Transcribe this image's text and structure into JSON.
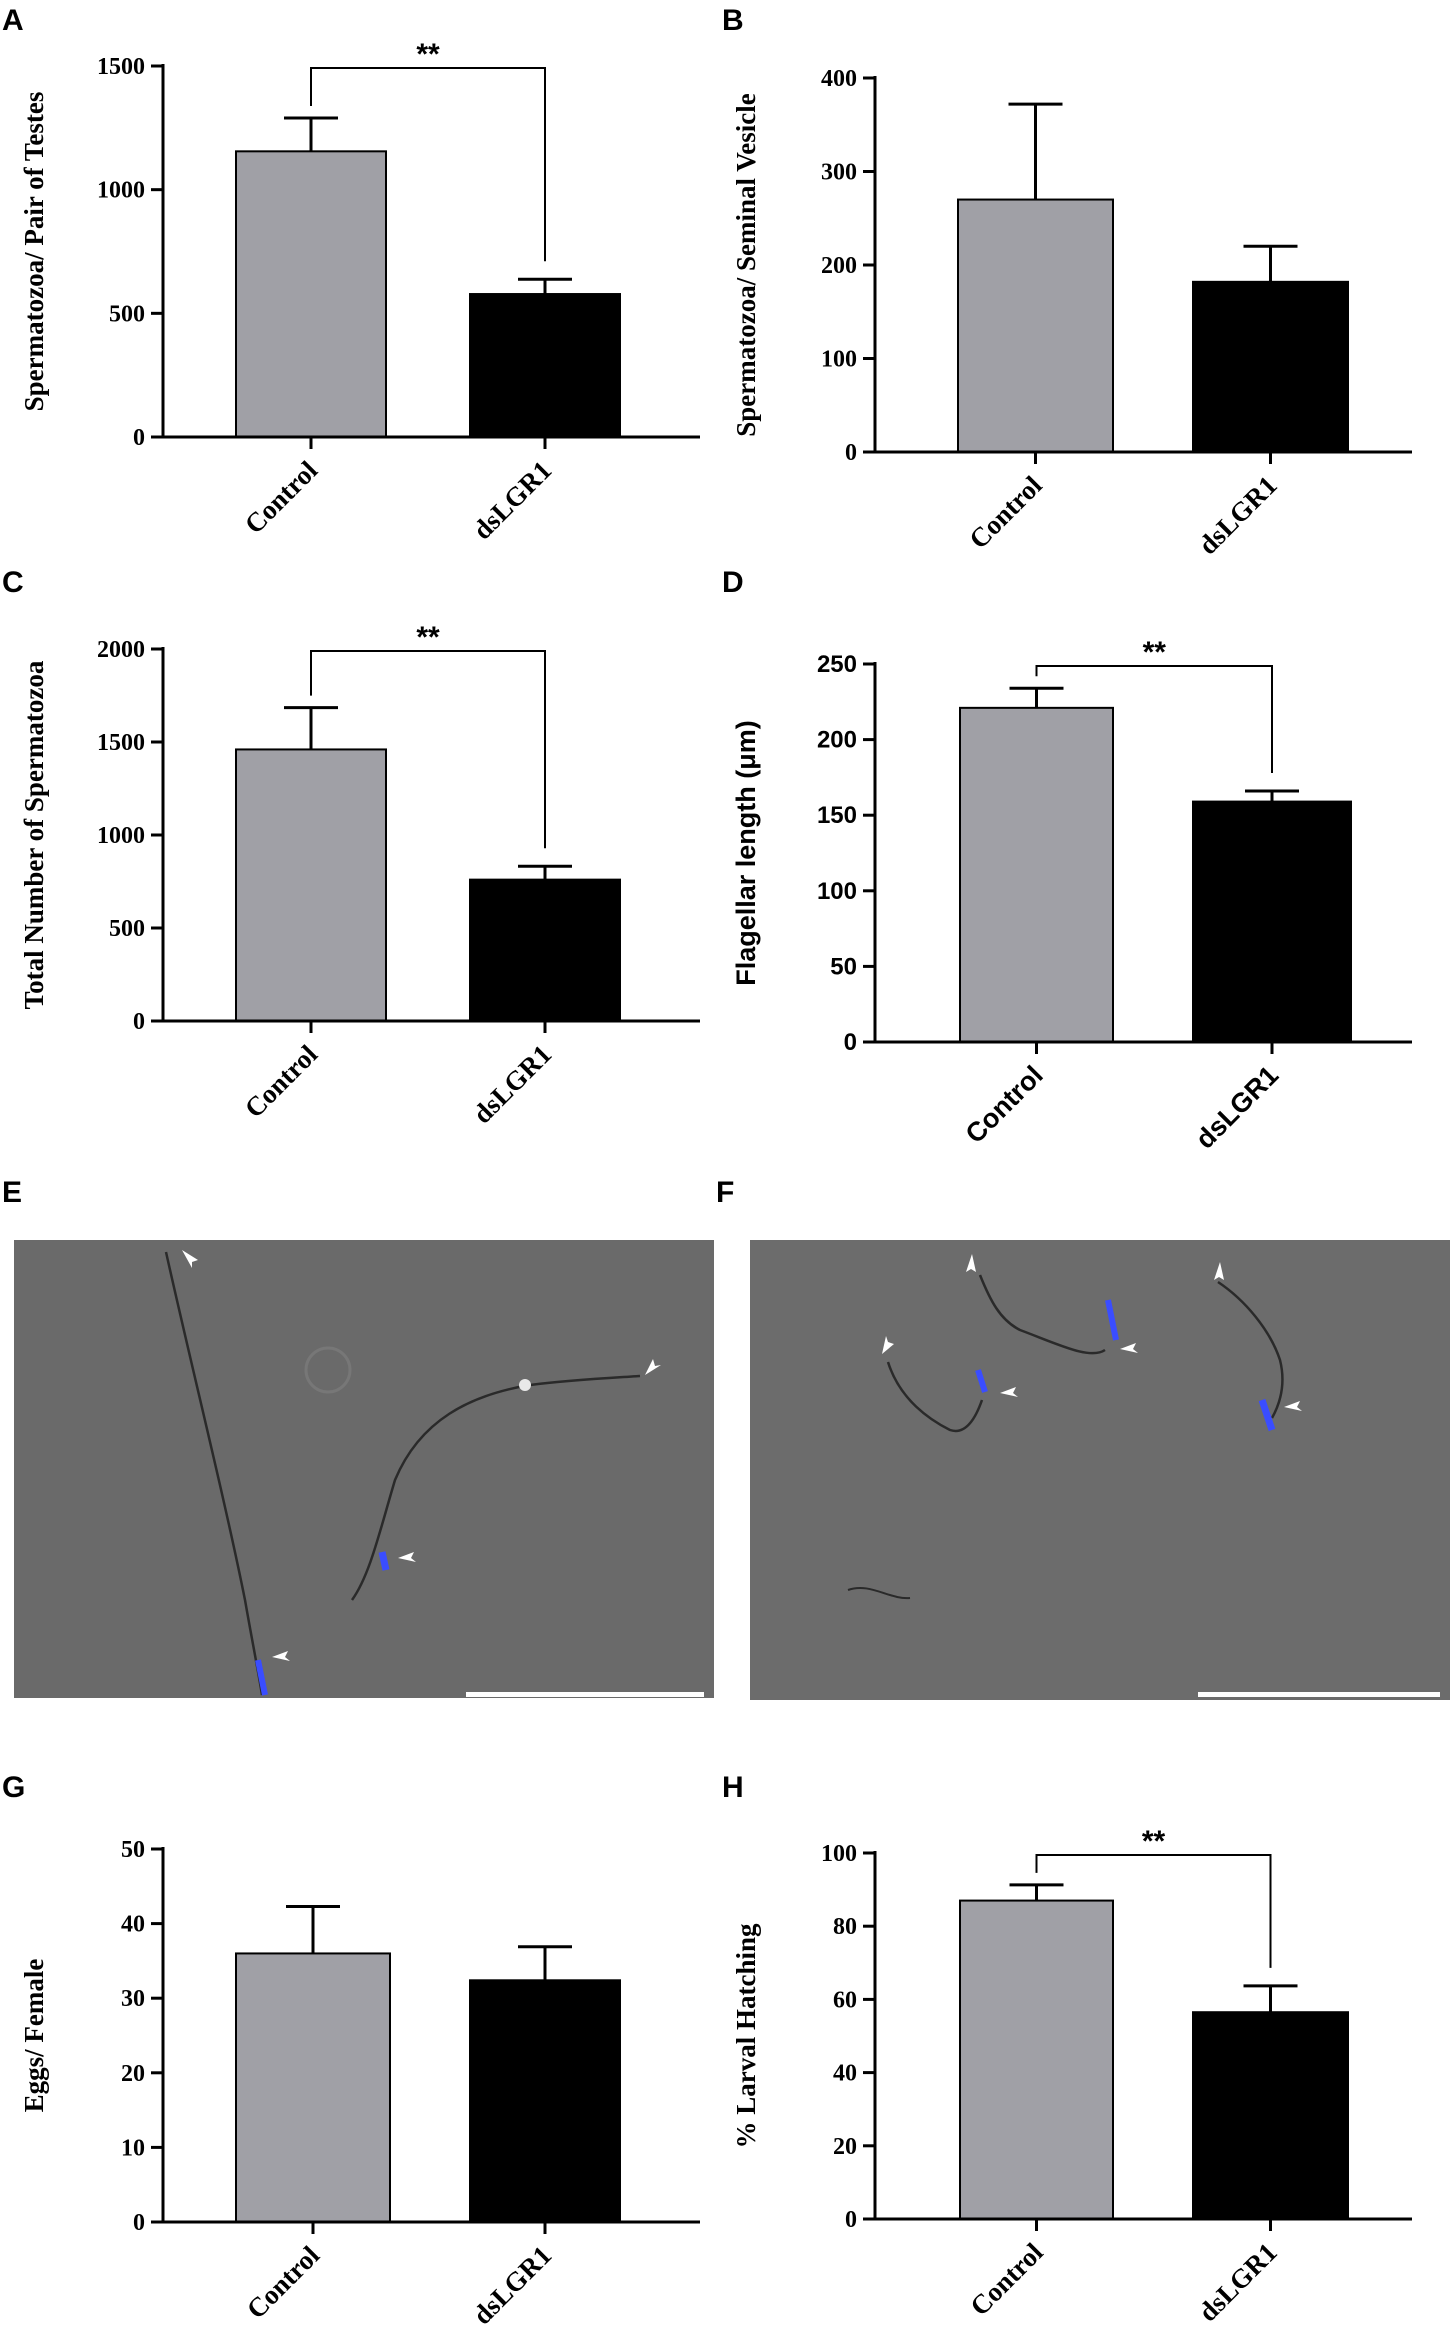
{
  "colors": {
    "control": "#a0a0a6",
    "dslgr1": "#000000",
    "micro_bg": "#6a6a6a",
    "scale_bar": "#ffffff",
    "dapi": "#3a4dff"
  },
  "panels": {
    "A": {
      "letter": "A",
      "chart_data": {
        "type": "bar",
        "categories": [
          "Control",
          "dsLGR1"
        ],
        "values": [
          1155,
          578
        ],
        "errors": [
          135,
          60
        ],
        "ylabel": "Spermatozoa/ Pair of Testes",
        "ylim": [
          0,
          1500
        ],
        "yticks": [
          0,
          500,
          1000,
          1500
        ],
        "significance": "**",
        "font": "serif"
      }
    },
    "B": {
      "letter": "B",
      "chart_data": {
        "type": "bar",
        "categories": [
          "Control",
          "dsLGR1"
        ],
        "values": [
          270,
          182
        ],
        "errors": [
          102,
          38
        ],
        "ylabel": "Spermatozoa/ Seminal Vesicle",
        "ylim": [
          0,
          400
        ],
        "yticks": [
          0,
          100,
          200,
          300,
          400
        ],
        "significance": "",
        "font": "serif"
      }
    },
    "C": {
      "letter": "C",
      "chart_data": {
        "type": "bar",
        "categories": [
          "Control",
          "dsLGR1"
        ],
        "values": [
          1460,
          760
        ],
        "errors": [
          225,
          72
        ],
        "ylabel": "Total Number of Spermatozoa",
        "ylim": [
          0,
          2000
        ],
        "yticks": [
          0,
          500,
          1000,
          1500,
          2000
        ],
        "significance": "**",
        "font": "serif"
      }
    },
    "D": {
      "letter": "D",
      "chart_data": {
        "type": "bar",
        "categories": [
          "Control",
          "dsLGR1"
        ],
        "values": [
          221,
          159
        ],
        "errors": [
          13,
          7
        ],
        "ylabel": "Flagellar length (μm)",
        "ylim": [
          0,
          250
        ],
        "yticks": [
          0,
          50,
          100,
          150,
          200,
          250
        ],
        "significance": "**",
        "font": "sans"
      }
    },
    "E": {
      "letter": "E"
    },
    "F": {
      "letter": "F"
    },
    "G": {
      "letter": "G",
      "chart_data": {
        "type": "bar",
        "categories": [
          "Control",
          "dsLGR1"
        ],
        "values": [
          36,
          32.4
        ],
        "errors": [
          6.3,
          4.5
        ],
        "ylabel": "Eggs/ Female",
        "ylim": [
          0,
          50
        ],
        "yticks": [
          0,
          10,
          20,
          30,
          40,
          50
        ],
        "significance": "",
        "font": "serif"
      }
    },
    "H": {
      "letter": "H",
      "chart_data": {
        "type": "bar",
        "categories": [
          "Control",
          "dsLGR1"
        ],
        "values": [
          87,
          56.5
        ],
        "errors": [
          4.3,
          7.2
        ],
        "ylabel": "% Larval Hatching",
        "ylim": [
          0,
          100
        ],
        "yticks": [
          0,
          20,
          40,
          60,
          80,
          100
        ],
        "significance": "**",
        "font": "serif"
      }
    }
  }
}
